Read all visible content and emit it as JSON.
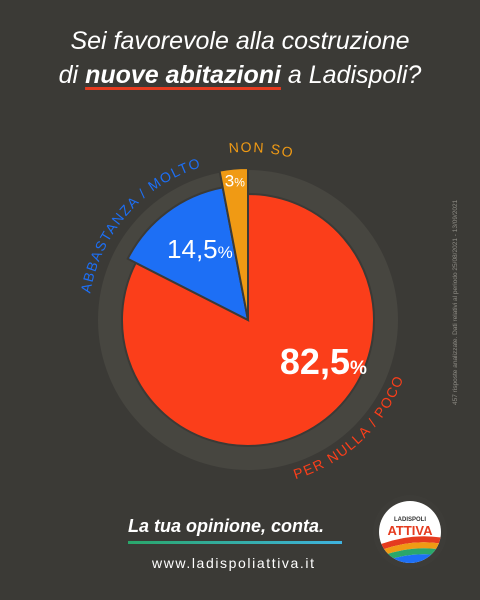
{
  "header": {
    "line1": "Sei favorevole alla costruzione",
    "line2_prefix": "di",
    "line2_emphasis": "nuove abitazioni",
    "line2_suffix": "a Ladispoli?"
  },
  "side_note": "457 risposte analizzate. Dati relativi al periodo 25/08/2021 - 13/09/2021",
  "colors": {
    "background": "#3b3a36",
    "ring": "#474640",
    "red": "#fb3e1a",
    "blue": "#1d6ff5",
    "orange": "#f09a14"
  },
  "chart_data": {
    "type": "pie",
    "title": "Sei favorevole alla costruzione di nuove abitazioni a Ladispoli?",
    "slices": [
      {
        "label": "PER NULLA / POCO",
        "value": 82.5,
        "display": "82,5",
        "color": "#fb3e1a"
      },
      {
        "label": "ABBASTANZA / MOLTO",
        "value": 14.5,
        "display": "14,5",
        "color": "#1d6ff5"
      },
      {
        "label": "NON SO",
        "value": 3,
        "display": "3",
        "color": "#f09a14"
      }
    ],
    "percent_sign": "%"
  },
  "footer": {
    "tagline": "La tua opinione, conta.",
    "url": "www.ladispoliattiva.it"
  },
  "logo": {
    "top_text": "LADISPOLI",
    "main_text": "ATTIVA"
  }
}
